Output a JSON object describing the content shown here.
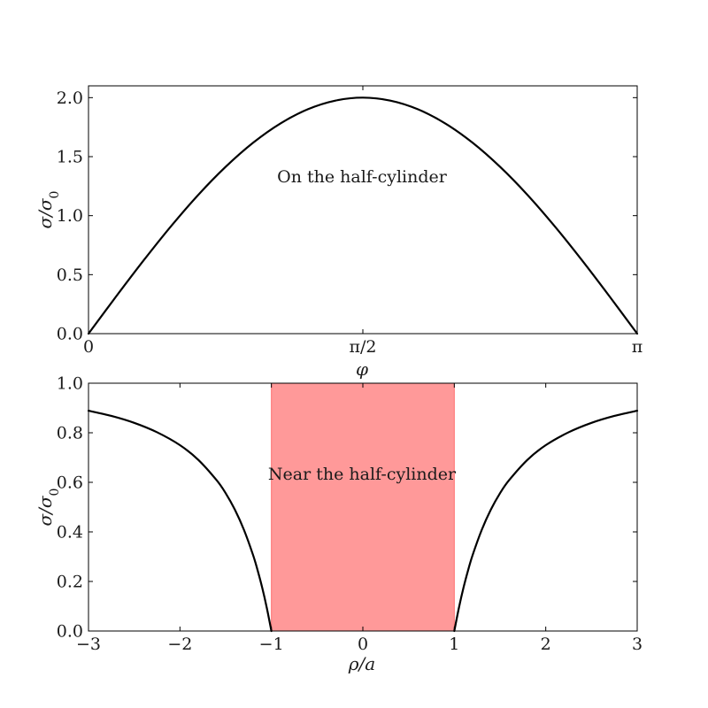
{
  "chart_data": [
    {
      "type": "line",
      "title": "",
      "xlabel": "φ",
      "ylabel": "σ/σ0",
      "xlim": [
        0,
        3.14159265
      ],
      "ylim": [
        0,
        2.1
      ],
      "xticks": [
        0,
        1.5707963,
        3.14159265
      ],
      "xtick_labels": [
        "0",
        "π/2",
        "π"
      ],
      "yticks": [
        0,
        0.5,
        1.0,
        1.5,
        2.0
      ],
      "ytick_labels": [
        "0.0",
        "0.5",
        "1.0",
        "1.5",
        "2.0"
      ],
      "annotation": "On the half-cylinder",
      "series": [
        {
          "color": "#000000",
          "x": [
            0,
            0.1571,
            0.3142,
            0.4712,
            0.6283,
            0.7854,
            0.9425,
            1.0996,
            1.2566,
            1.4137,
            1.5708,
            1.7279,
            1.885,
            2.042,
            2.1991,
            2.3562,
            2.5133,
            2.6704,
            2.8274,
            2.9845,
            3.1416
          ],
          "y": [
            0,
            0.313,
            0.618,
            0.908,
            1.176,
            1.414,
            1.618,
            1.782,
            1.902,
            1.975,
            2.0,
            1.975,
            1.902,
            1.782,
            1.618,
            1.414,
            1.176,
            0.908,
            0.618,
            0.313,
            0
          ]
        }
      ]
    },
    {
      "type": "line",
      "title": "",
      "xlabel": "ρ/a",
      "ylabel": "σ/σ0",
      "xlim": [
        -3,
        3
      ],
      "ylim": [
        0,
        1.0
      ],
      "xticks": [
        -3,
        -2,
        -1,
        0,
        1,
        2,
        3
      ],
      "xtick_labels": [
        "−3",
        "−2",
        "−1",
        "0",
        "1",
        "2",
        "3"
      ],
      "yticks": [
        0,
        0.2,
        0.4,
        0.6,
        0.8,
        1.0
      ],
      "ytick_labels": [
        "0.0",
        "0.2",
        "0.4",
        "0.6",
        "0.8",
        "1.0"
      ],
      "annotation": "Near the half-cylinder",
      "shaded_region": {
        "x": [
          -1,
          1
        ],
        "color": "#ff9999"
      },
      "series": [
        {
          "color": "#000000",
          "x": [
            -3.0,
            -2.75,
            -2.5,
            -2.25,
            -2.0,
            -1.8,
            -1.6,
            -1.5,
            -1.4,
            -1.3,
            -1.2,
            -1.15,
            -1.1,
            -1.05,
            -1.0
          ],
          "y": [
            0.889,
            0.868,
            0.84,
            0.802,
            0.75,
            0.691,
            0.609,
            0.556,
            0.49,
            0.408,
            0.306,
            0.244,
            0.174,
            0.093,
            0.0
          ]
        },
        {
          "color": "#000000",
          "x": [
            1.0,
            1.05,
            1.1,
            1.15,
            1.2,
            1.3,
            1.4,
            1.5,
            1.6,
            1.8,
            2.0,
            2.25,
            2.5,
            2.75,
            3.0
          ],
          "y": [
            0.0,
            0.093,
            0.174,
            0.244,
            0.306,
            0.408,
            0.49,
            0.556,
            0.609,
            0.691,
            0.75,
            0.802,
            0.84,
            0.868,
            0.889
          ]
        }
      ]
    }
  ]
}
